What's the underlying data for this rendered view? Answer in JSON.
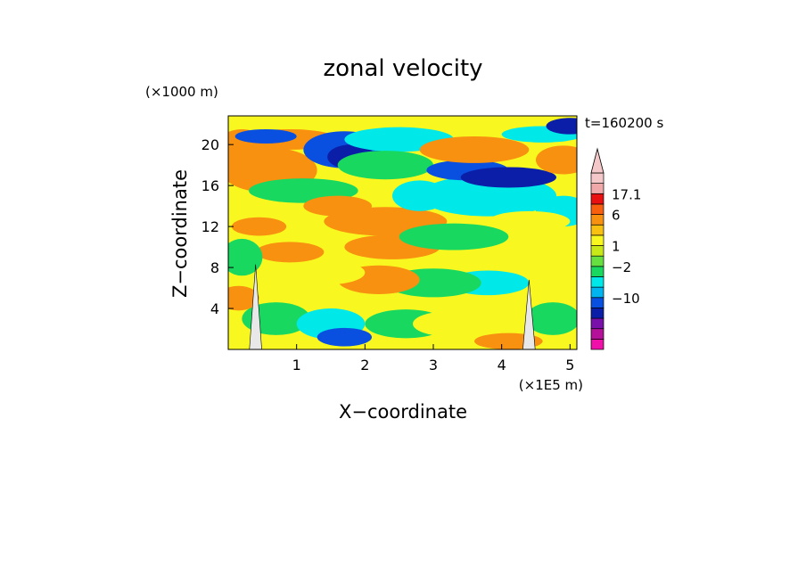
{
  "chart_data": {
    "type": "heatmap",
    "title": "zonal velocity",
    "xlabel": "X−coordinate",
    "ylabel": "Z−coordinate",
    "x_unit": "(×1E5 m)",
    "y_unit": "(×1000 m)",
    "time_label": "t=160200 s",
    "xlim": [
      0,
      5.1
    ],
    "ylim": [
      0,
      22.8
    ],
    "x_ticks": [
      {
        "value": 1,
        "label": "1"
      },
      {
        "value": 2,
        "label": "2"
      },
      {
        "value": 3,
        "label": "3"
      },
      {
        "value": 4,
        "label": "4"
      },
      {
        "value": 5,
        "label": "5"
      }
    ],
    "y_ticks": [
      {
        "value": 4,
        "label": "4"
      },
      {
        "value": 8,
        "label": "8"
      },
      {
        "value": 12,
        "label": "12"
      },
      {
        "value": 16,
        "label": "16"
      },
      {
        "value": 20,
        "label": "20"
      }
    ],
    "colorbar": {
      "colors": [
        "#ee10a8",
        "#b4109a",
        "#7a10aa",
        "#0a1ea8",
        "#0a50e0",
        "#00b4f0",
        "#00e8e8",
        "#18d860",
        "#66e040",
        "#c8e818",
        "#f8f820",
        "#f8c010",
        "#f89010",
        "#f86010",
        "#e81010",
        "#f0a8a8",
        "#f4c8c8"
      ],
      "arrow_color": "#f4c8c8",
      "labels": [
        {
          "level": 15,
          "text": "17.1"
        },
        {
          "level": 13,
          "text": "6"
        },
        {
          "level": 10,
          "text": "1"
        },
        {
          "level": 8,
          "text": "−2"
        },
        {
          "level": 5,
          "text": "−10"
        }
      ]
    },
    "palette": {
      "deep_blue": "#0a1ea8",
      "blue": "#0a50e0",
      "cyan": "#00e8e8",
      "green": "#18d860",
      "yellow": "#f8f820",
      "orange": "#f89010",
      "red": "#e81010"
    },
    "blobs": [
      {
        "x": 0.6,
        "z": 17.5,
        "rx": 0.7,
        "rz": 2.2,
        "c": "orange"
      },
      {
        "x": 0.2,
        "z": 19.5,
        "rx": 0.4,
        "rz": 2.0,
        "c": "orange"
      },
      {
        "x": 0.9,
        "z": 20.5,
        "rx": 0.7,
        "rz": 1.0,
        "c": "orange"
      },
      {
        "x": 1.7,
        "z": 19.5,
        "rx": 0.6,
        "rz": 1.8,
        "c": "blue"
      },
      {
        "x": 1.8,
        "z": 18.8,
        "rx": 0.35,
        "rz": 1.2,
        "c": "deep_blue"
      },
      {
        "x": 0.55,
        "z": 20.8,
        "rx": 0.45,
        "rz": 0.7,
        "c": "blue"
      },
      {
        "x": 2.5,
        "z": 20.5,
        "rx": 0.8,
        "rz": 1.2,
        "c": "cyan"
      },
      {
        "x": 2.3,
        "z": 18.0,
        "rx": 0.7,
        "rz": 1.4,
        "c": "green"
      },
      {
        "x": 1.1,
        "z": 15.5,
        "rx": 0.8,
        "rz": 1.2,
        "c": "green"
      },
      {
        "x": 1.6,
        "z": 14.0,
        "rx": 0.5,
        "rz": 1.0,
        "c": "orange"
      },
      {
        "x": 2.3,
        "z": 12.5,
        "rx": 0.9,
        "rz": 1.4,
        "c": "orange"
      },
      {
        "x": 2.4,
        "z": 10.0,
        "rx": 0.7,
        "rz": 1.2,
        "c": "orange"
      },
      {
        "x": 3.3,
        "z": 11.0,
        "rx": 0.8,
        "rz": 1.3,
        "c": "green"
      },
      {
        "x": 3.8,
        "z": 15.0,
        "rx": 1.0,
        "rz": 2.0,
        "c": "cyan"
      },
      {
        "x": 3.5,
        "z": 17.5,
        "rx": 0.6,
        "rz": 1.0,
        "c": "blue"
      },
      {
        "x": 4.1,
        "z": 16.8,
        "rx": 0.7,
        "rz": 1.0,
        "c": "deep_blue"
      },
      {
        "x": 3.6,
        "z": 19.5,
        "rx": 0.8,
        "rz": 1.3,
        "c": "orange"
      },
      {
        "x": 4.6,
        "z": 21.0,
        "rx": 0.6,
        "rz": 0.8,
        "c": "cyan"
      },
      {
        "x": 4.9,
        "z": 18.5,
        "rx": 0.4,
        "rz": 1.4,
        "c": "orange"
      },
      {
        "x": 5.0,
        "z": 21.8,
        "rx": 0.35,
        "rz": 0.8,
        "c": "deep_blue"
      },
      {
        "x": 4.9,
        "z": 13.5,
        "rx": 0.4,
        "rz": 1.5,
        "c": "cyan"
      },
      {
        "x": 4.4,
        "z": 12.5,
        "rx": 0.6,
        "rz": 1.0,
        "c": "yellow"
      },
      {
        "x": 3.8,
        "z": 6.5,
        "rx": 0.6,
        "rz": 1.2,
        "c": "cyan"
      },
      {
        "x": 4.0,
        "z": 2.5,
        "rx": 0.6,
        "rz": 1.5,
        "c": "yellow"
      },
      {
        "x": 4.1,
        "z": 0.8,
        "rx": 0.5,
        "rz": 0.8,
        "c": "orange"
      },
      {
        "x": 4.75,
        "z": 3.0,
        "rx": 0.4,
        "rz": 1.6,
        "c": "green"
      },
      {
        "x": 3.0,
        "z": 6.5,
        "rx": 0.7,
        "rz": 1.4,
        "c": "green"
      },
      {
        "x": 2.2,
        "z": 6.8,
        "rx": 0.6,
        "rz": 1.4,
        "c": "orange"
      },
      {
        "x": 1.4,
        "z": 7.5,
        "rx": 0.6,
        "rz": 1.2,
        "c": "yellow"
      },
      {
        "x": 0.9,
        "z": 9.5,
        "rx": 0.5,
        "rz": 1.0,
        "c": "orange"
      },
      {
        "x": 0.2,
        "z": 9.0,
        "rx": 0.3,
        "rz": 1.8,
        "c": "green"
      },
      {
        "x": 0.7,
        "z": 3.0,
        "rx": 0.5,
        "rz": 1.6,
        "c": "green"
      },
      {
        "x": 1.5,
        "z": 2.5,
        "rx": 0.5,
        "rz": 1.5,
        "c": "cyan"
      },
      {
        "x": 1.7,
        "z": 1.2,
        "rx": 0.4,
        "rz": 0.9,
        "c": "blue"
      },
      {
        "x": 2.6,
        "z": 2.5,
        "rx": 0.6,
        "rz": 1.4,
        "c": "green"
      },
      {
        "x": 3.2,
        "z": 2.5,
        "rx": 0.5,
        "rz": 1.2,
        "c": "yellow"
      },
      {
        "x": 0.15,
        "z": 5.0,
        "rx": 0.3,
        "rz": 1.2,
        "c": "orange"
      },
      {
        "x": 0.45,
        "z": 12.0,
        "rx": 0.4,
        "rz": 0.9,
        "c": "orange"
      },
      {
        "x": 4.2,
        "z": 9.0,
        "rx": 0.7,
        "rz": 1.2,
        "c": "yellow"
      },
      {
        "x": 2.8,
        "z": 15.0,
        "rx": 0.4,
        "rz": 1.5,
        "c": "cyan"
      }
    ],
    "mountains": [
      {
        "x": 0.4,
        "halfwidth": 0.09,
        "height": 8.3
      },
      {
        "x": 4.4,
        "halfwidth": 0.09,
        "height": 6.8
      }
    ],
    "mountain_color": "#e8e8e8"
  }
}
